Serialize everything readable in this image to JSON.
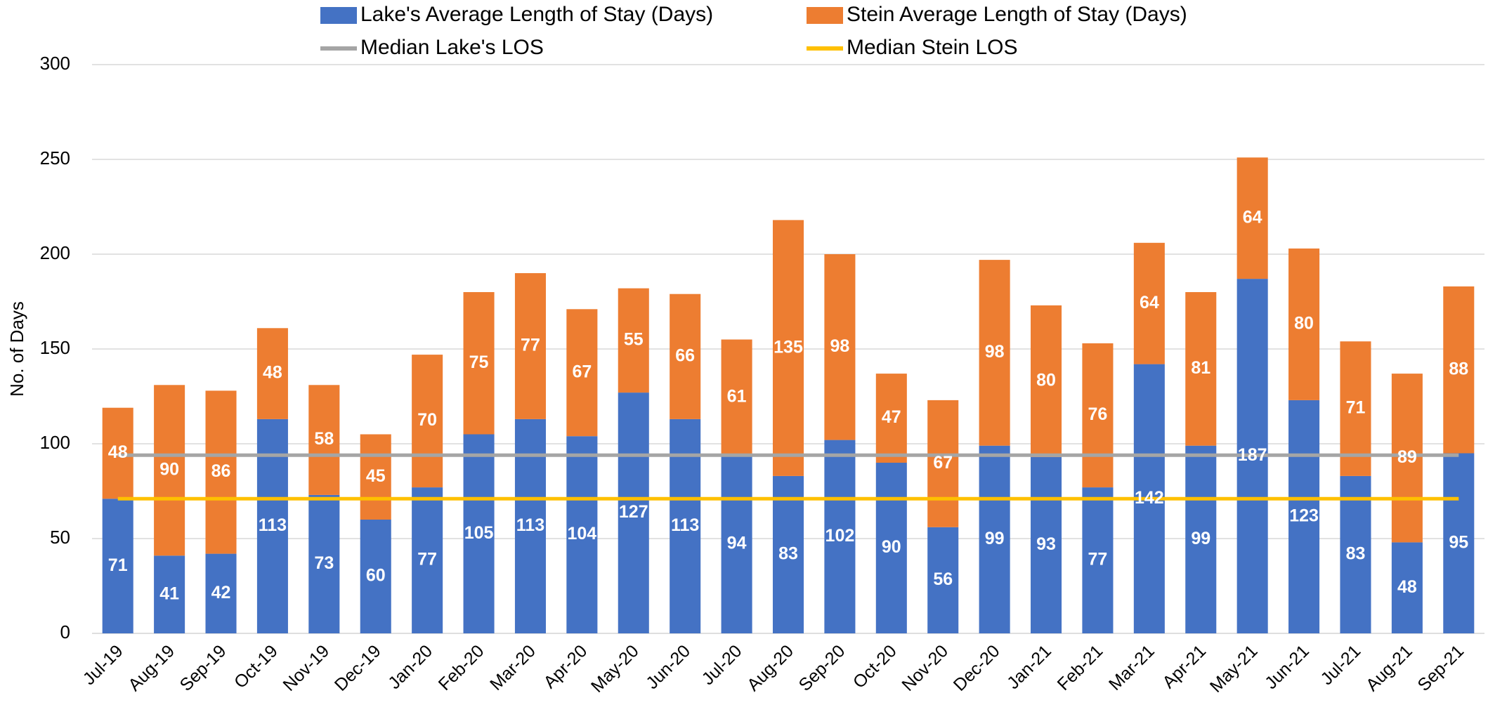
{
  "chart_data": {
    "type": "bar",
    "y_label": "No. of Days",
    "categories": [
      "Jul-19",
      "Aug-19",
      "Sep-19",
      "Oct-19",
      "Nov-19",
      "Dec-19",
      "Jan-20",
      "Feb-20",
      "Mar-20",
      "Apr-20",
      "May-20",
      "Jun-20",
      "Jul-20",
      "Aug-20",
      "Sep-20",
      "Oct-20",
      "Nov-20",
      "Dec-20",
      "Jan-21",
      "Feb-21",
      "Mar-21",
      "Apr-21",
      "May-21",
      "Jun-21",
      "Jul-21",
      "Aug-21",
      "Sep-21"
    ],
    "series": [
      {
        "name": "Lake's Average Length of Stay (Days)",
        "color": "#4472c4",
        "type": "bar",
        "values": [
          71,
          41,
          42,
          113,
          73,
          60,
          77,
          105,
          113,
          104,
          127,
          113,
          94,
          83,
          102,
          90,
          56,
          99,
          93,
          77,
          142,
          99,
          187,
          123,
          83,
          48,
          95
        ]
      },
      {
        "name": "Stein Average Length of Stay (Days)",
        "color": "#ed7d31",
        "type": "bar",
        "values": [
          48,
          90,
          86,
          48,
          58,
          45,
          70,
          75,
          77,
          67,
          55,
          66,
          61,
          135,
          98,
          47,
          67,
          98,
          80,
          76,
          64,
          81,
          64,
          80,
          71,
          89,
          88
        ]
      },
      {
        "name": "Median Lake's LOS",
        "color": "#a5a5a5",
        "type": "line",
        "values": [
          94,
          94,
          94,
          94,
          94,
          94,
          94,
          94,
          94,
          94,
          94,
          94,
          94,
          94,
          94,
          94,
          94,
          94,
          94,
          94,
          94,
          94,
          94,
          94,
          94,
          94,
          94
        ]
      },
      {
        "name": "Median Stein LOS",
        "color": "#ffc000",
        "type": "line",
        "values": [
          71,
          71,
          71,
          71,
          71,
          71,
          71,
          71,
          71,
          71,
          71,
          71,
          71,
          71,
          71,
          71,
          71,
          71,
          71,
          71,
          71,
          71,
          71,
          71,
          71,
          71,
          71
        ]
      }
    ],
    "stacked": true,
    "ylim": [
      0,
      300
    ],
    "yticks": [
      0,
      50,
      100,
      150,
      200,
      250,
      300
    ],
    "grid": true
  }
}
